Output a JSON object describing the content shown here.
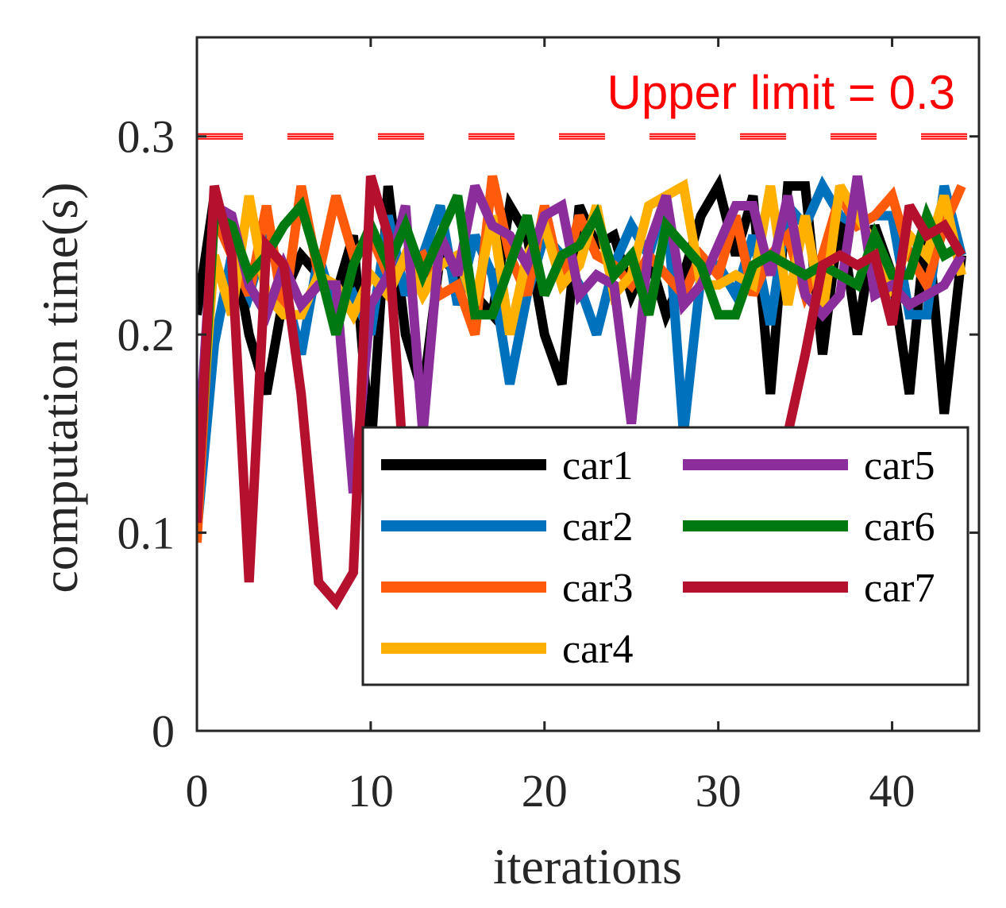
{
  "chart_data": {
    "type": "line",
    "xlabel": "iterations",
    "ylabel": "computation time(s)",
    "xlim": [
      0,
      45
    ],
    "ylim": [
      0,
      0.35
    ],
    "x_ticks": [
      0,
      10,
      20,
      30,
      40
    ],
    "x_tick_labels": [
      "0",
      "10",
      "20",
      "30",
      "40"
    ],
    "y_ticks": [
      0,
      0.1,
      0.2,
      0.3
    ],
    "y_tick_labels": [
      "0",
      "0.1",
      "0.2",
      "0.3"
    ],
    "grid": false,
    "legend_position": "bottom-right, two columns",
    "annotation": {
      "text": "Upper limit = 0.3",
      "color": "#ff0000"
    },
    "reference_line": {
      "y": 0.3,
      "style": "dashed",
      "color": "#ff0000"
    },
    "x": [
      0,
      1,
      2,
      3,
      4,
      5,
      6,
      7,
      8,
      9,
      10,
      11,
      12,
      13,
      14,
      15,
      16,
      17,
      18,
      19,
      20,
      21,
      22,
      23,
      24,
      25,
      26,
      27,
      28,
      29,
      30,
      31,
      32,
      33,
      34,
      35,
      36,
      37,
      38,
      39,
      40,
      41,
      42,
      43,
      44
    ],
    "series": [
      {
        "name": "car1",
        "color": "#000000",
        "values": [
          0.21,
          0.27,
          0.25,
          0.2,
          0.17,
          0.22,
          0.24,
          0.23,
          0.22,
          0.25,
          0.14,
          0.275,
          0.2,
          0.17,
          0.24,
          0.23,
          0.22,
          0.21,
          0.265,
          0.25,
          0.2,
          0.175,
          0.265,
          0.245,
          0.25,
          0.22,
          0.24,
          0.21,
          0.23,
          0.26,
          0.275,
          0.24,
          0.27,
          0.17,
          0.275,
          0.275,
          0.19,
          0.26,
          0.2,
          0.255,
          0.23,
          0.17,
          0.26,
          0.16,
          0.24
        ]
      },
      {
        "name": "car2",
        "color": "#0072bd",
        "values": [
          0.1,
          0.195,
          0.24,
          0.22,
          0.25,
          0.225,
          0.19,
          0.24,
          0.21,
          0.22,
          0.2,
          0.26,
          0.22,
          0.24,
          0.265,
          0.215,
          0.25,
          0.23,
          0.175,
          0.22,
          0.25,
          0.24,
          0.225,
          0.2,
          0.235,
          0.255,
          0.24,
          0.27,
          0.15,
          0.23,
          0.235,
          0.22,
          0.25,
          0.205,
          0.265,
          0.255,
          0.275,
          0.26,
          0.255,
          0.26,
          0.26,
          0.21,
          0.21,
          0.275,
          0.24
        ]
      },
      {
        "name": "car3",
        "color": "#ff5b0a",
        "values": [
          0.095,
          0.26,
          0.24,
          0.22,
          0.265,
          0.21,
          0.275,
          0.23,
          0.27,
          0.24,
          0.25,
          0.23,
          0.235,
          0.24,
          0.22,
          0.225,
          0.2,
          0.28,
          0.24,
          0.22,
          0.265,
          0.225,
          0.26,
          0.24,
          0.235,
          0.225,
          0.24,
          0.23,
          0.22,
          0.24,
          0.23,
          0.26,
          0.22,
          0.24,
          0.25,
          0.22,
          0.24,
          0.27,
          0.255,
          0.26,
          0.27,
          0.24,
          0.225,
          0.255,
          0.275
        ]
      },
      {
        "name": "car4",
        "color": "#ffb000",
        "values": [
          0.12,
          0.24,
          0.21,
          0.27,
          0.22,
          0.21,
          0.21,
          0.23,
          0.225,
          0.21,
          0.23,
          0.22,
          0.24,
          0.22,
          0.235,
          0.24,
          0.215,
          0.26,
          0.2,
          0.24,
          0.255,
          0.225,
          0.235,
          0.265,
          0.22,
          0.23,
          0.265,
          0.27,
          0.275,
          0.225,
          0.225,
          0.23,
          0.225,
          0.275,
          0.215,
          0.26,
          0.21,
          0.275,
          0.26,
          0.245,
          0.22,
          0.25,
          0.24,
          0.27,
          0.23
        ]
      },
      {
        "name": "car5",
        "color": "#8b2e9b",
        "values": [
          0.13,
          0.265,
          0.26,
          0.225,
          0.21,
          0.235,
          0.215,
          0.225,
          0.225,
          0.12,
          0.215,
          0.23,
          0.265,
          0.15,
          0.25,
          0.23,
          0.275,
          0.255,
          0.25,
          0.235,
          0.26,
          0.265,
          0.22,
          0.23,
          0.225,
          0.155,
          0.245,
          0.27,
          0.215,
          0.225,
          0.245,
          0.265,
          0.265,
          0.23,
          0.27,
          0.22,
          0.21,
          0.22,
          0.28,
          0.22,
          0.225,
          0.215,
          0.22,
          0.225,
          0.24
        ]
      },
      {
        "name": "car6",
        "color": "#007a10",
        "values": [
          0.11,
          0.26,
          0.255,
          0.23,
          0.24,
          0.255,
          0.265,
          0.235,
          0.2,
          0.235,
          0.255,
          0.235,
          0.255,
          0.23,
          0.25,
          0.27,
          0.21,
          0.21,
          0.235,
          0.26,
          0.22,
          0.24,
          0.245,
          0.26,
          0.23,
          0.24,
          0.21,
          0.255,
          0.245,
          0.235,
          0.21,
          0.21,
          0.235,
          0.24,
          0.235,
          0.23,
          0.235,
          0.23,
          0.225,
          0.25,
          0.23,
          0.23,
          0.26,
          0.24,
          0.245
        ]
      },
      {
        "name": "car7",
        "color": "#b5102e",
        "values": [
          0.105,
          0.275,
          0.24,
          0.075,
          0.245,
          0.235,
          0.17,
          0.075,
          0.065,
          0.08,
          0.28,
          0.25,
          0.12,
          0.14,
          0.14,
          0.14,
          0.14,
          0.14,
          0.14,
          0.14,
          0.14,
          0.14,
          0.14,
          0.14,
          0.14,
          0.14,
          0.14,
          0.14,
          0.14,
          0.14,
          0.14,
          0.14,
          0.14,
          0.14,
          0.15,
          0.19,
          0.235,
          0.24,
          0.235,
          0.24,
          0.205,
          0.265,
          0.25,
          0.255,
          0.24
        ]
      }
    ]
  }
}
